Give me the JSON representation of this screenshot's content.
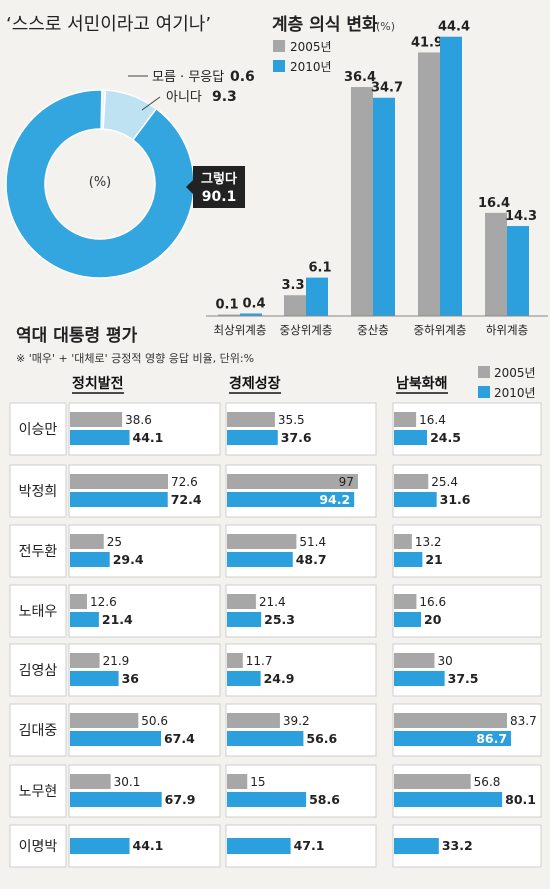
{
  "colors": {
    "y2005": "#a7a7a7",
    "y2010": "#2ba0dc",
    "donut_main": "#33a6df",
    "donut_light": "#bfe2f3",
    "row_bg": "#ffffff"
  },
  "chart_data": [
    {
      "type": "pie",
      "title": "‘스스로 서민이라고 여기나’",
      "center_label": "(%)",
      "slices": [
        {
          "label": "그렇다",
          "value": 90.1
        },
        {
          "label": "아니다",
          "value": 9.3
        },
        {
          "label": "모름 · 무응답",
          "value": 0.6
        }
      ]
    },
    {
      "type": "bar",
      "title": "계층 의식 변화",
      "unit": "(%)",
      "categories": [
        "최상위계층",
        "중상위계층",
        "중산층",
        "중하위계층",
        "하위계층"
      ],
      "series": [
        {
          "name": "2005년",
          "values": [
            0.1,
            3.3,
            36.4,
            41.9,
            16.4
          ]
        },
        {
          "name": "2010년",
          "values": [
            0.4,
            6.1,
            34.7,
            44.4,
            14.3
          ]
        }
      ],
      "ylim": [
        0,
        50
      ]
    },
    {
      "type": "bar",
      "orientation": "horizontal",
      "title": "역대 대통령 평가",
      "subtitle": "※ '매우' + '대체로' 긍정적 영향 응답 비율, 단위:%",
      "groups": [
        "정치발전",
        "경제성장",
        "남북화해"
      ],
      "series_names": [
        "2005년",
        "2010년"
      ],
      "presidents": [
        {
          "name": "이승만",
          "정치발전": [
            38.6,
            44.1
          ],
          "경제성장": [
            35.5,
            37.6
          ],
          "남북화해": [
            16.4,
            24.5
          ]
        },
        {
          "name": "박정희",
          "정치발전": [
            72.6,
            72.4
          ],
          "경제성장": [
            97,
            94.2
          ],
          "남북화해": [
            25.4,
            31.6
          ]
        },
        {
          "name": "전두환",
          "정치발전": [
            25,
            29.4
          ],
          "경제성장": [
            51.4,
            48.7
          ],
          "남북화해": [
            13.2,
            21
          ]
        },
        {
          "name": "노태우",
          "정치발전": [
            12.6,
            21.4
          ],
          "경제성장": [
            21.4,
            25.3
          ],
          "남북화해": [
            16.6,
            20
          ]
        },
        {
          "name": "김영삼",
          "정치발전": [
            21.9,
            36
          ],
          "경제성장": [
            11.7,
            24.9
          ],
          "남북화해": [
            30,
            37.5
          ]
        },
        {
          "name": "김대중",
          "정치발전": [
            50.6,
            67.4
          ],
          "경제성장": [
            39.2,
            56.6
          ],
          "남북화해": [
            83.7,
            86.7
          ]
        },
        {
          "name": "노무현",
          "정치발전": [
            30.1,
            67.9
          ],
          "경제성장": [
            15,
            58.6
          ],
          "남북화해": [
            56.8,
            80.1
          ]
        },
        {
          "name": "이명박",
          "정치발전": [
            null,
            44.1
          ],
          "경제성장": [
            null,
            47.1
          ],
          "남북화해": [
            null,
            33.2
          ]
        }
      ]
    }
  ]
}
